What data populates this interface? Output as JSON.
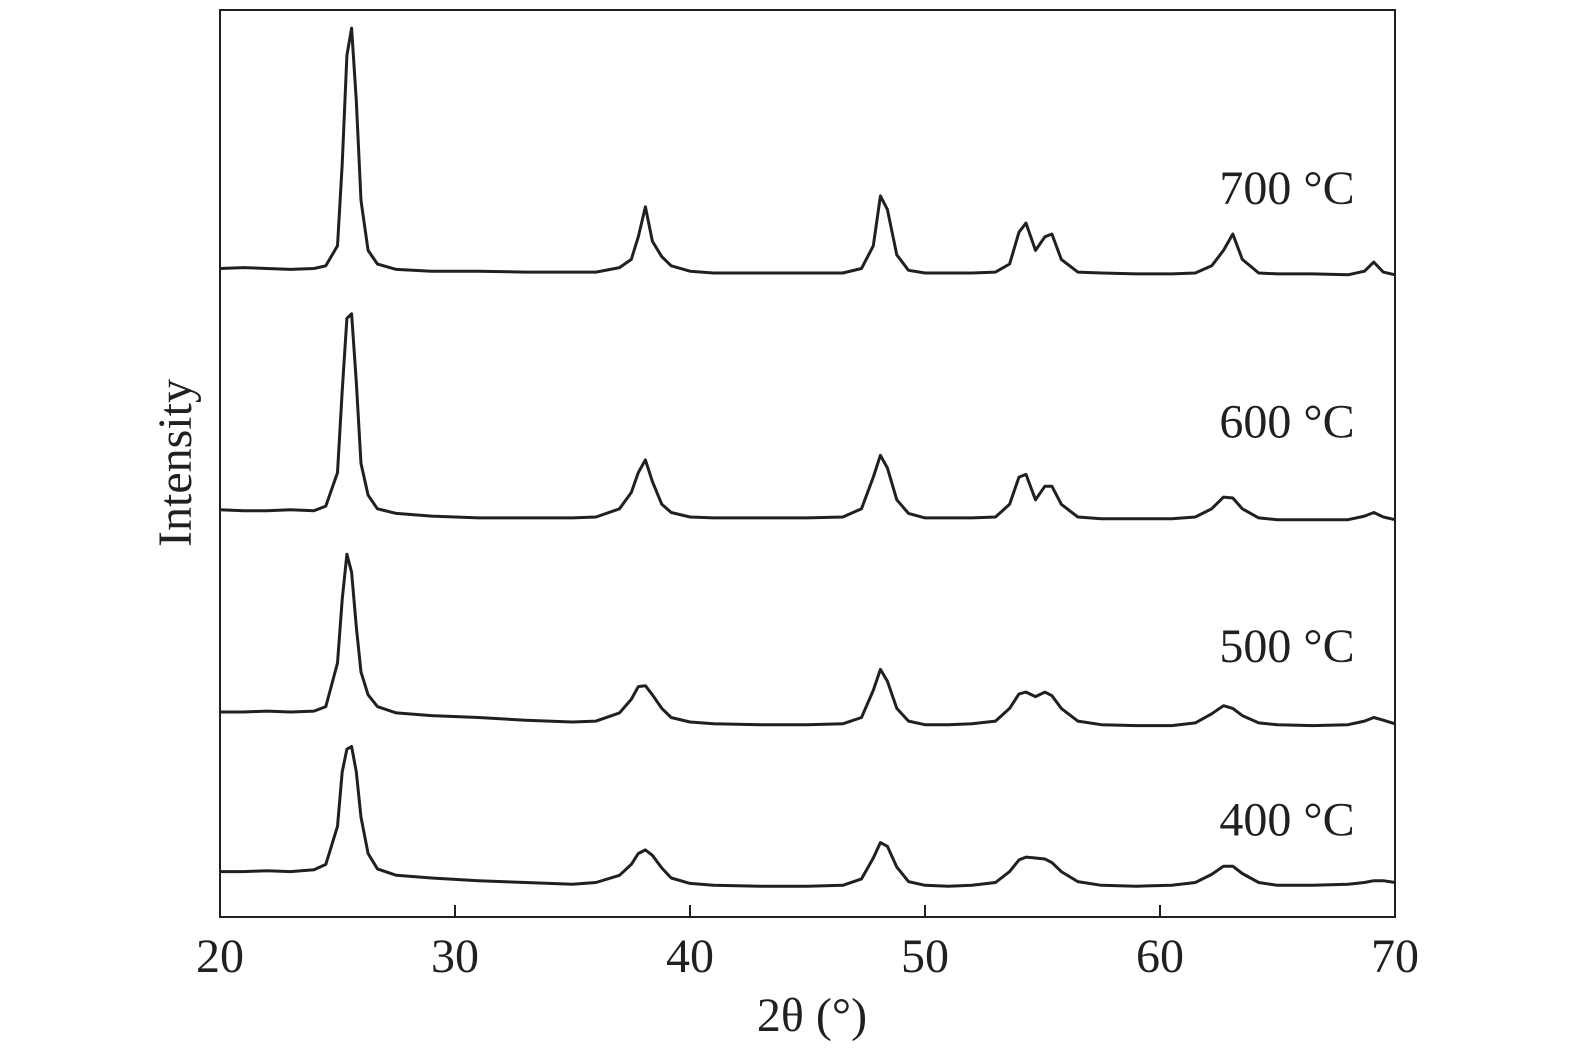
{
  "chart_data": {
    "type": "line",
    "xlabel": "2θ (°)",
    "ylabel": "Intensity",
    "xlim": [
      20,
      70
    ],
    "xticks": [
      20,
      30,
      40,
      50,
      60,
      70
    ],
    "ylim": [
      0,
      100
    ],
    "x": [
      20,
      21,
      22,
      23,
      24,
      24.5,
      25,
      25.2,
      25.4,
      25.6,
      25.8,
      26,
      26.3,
      26.7,
      27.5,
      29,
      31,
      33,
      35,
      36,
      37,
      37.5,
      37.8,
      38.1,
      38.4,
      38.8,
      39.2,
      40,
      41,
      43,
      45,
      46.5,
      47.3,
      47.8,
      48.1,
      48.4,
      48.8,
      49.3,
      50,
      51,
      52,
      53,
      53.6,
      54,
      54.3,
      54.7,
      55.1,
      55.4,
      55.8,
      56.5,
      57.5,
      59,
      60.5,
      61.5,
      62.2,
      62.7,
      63.1,
      63.5,
      64.2,
      65,
      66.5,
      68,
      68.7,
      69.1,
      69.5,
      70
    ],
    "series": [
      {
        "name": "700 °C",
        "color": "#231f20",
        "values": [
          71.5,
          71.6,
          71.5,
          71.4,
          71.5,
          71.8,
          74,
          83,
          95,
          98,
          90,
          79,
          73.5,
          72,
          71.4,
          71.2,
          71.2,
          71.1,
          71.1,
          71.1,
          71.6,
          72.5,
          75,
          78.3,
          74.5,
          72.8,
          71.8,
          71.2,
          71,
          71,
          71,
          71,
          71.5,
          74,
          79.5,
          78,
          73,
          71.3,
          71,
          71,
          71,
          71.1,
          72,
          75.5,
          76.5,
          73.5,
          75,
          75.3,
          72.5,
          71.1,
          71,
          70.9,
          70.9,
          71,
          71.8,
          73.5,
          75.3,
          72.5,
          71,
          70.9,
          70.9,
          70.8,
          71.2,
          72.2,
          71.1,
          70.8
        ]
      },
      {
        "name": "600 °C",
        "color": "#231f20",
        "values": [
          44.9,
          44.8,
          44.8,
          44.9,
          44.8,
          45.3,
          49,
          58,
          66,
          66.5,
          59,
          50,
          46.5,
          45,
          44.5,
          44.2,
          44,
          44,
          44,
          44.1,
          45,
          46.8,
          49,
          50.4,
          48,
          45.5,
          44.6,
          44.1,
          44,
          44,
          44,
          44.1,
          45,
          48.5,
          50.9,
          49.5,
          46,
          44.5,
          44,
          44,
          44,
          44.1,
          45.5,
          48.5,
          48.8,
          46,
          47.5,
          47.5,
          45.5,
          44.1,
          43.9,
          43.9,
          43.9,
          44.1,
          45,
          46.3,
          46.2,
          45,
          44,
          43.8,
          43.8,
          43.8,
          44.2,
          44.6,
          44.1,
          43.8
        ]
      },
      {
        "name": "500 °C",
        "color": "#231f20",
        "values": [
          22.6,
          22.6,
          22.7,
          22.6,
          22.7,
          23.2,
          28,
          35,
          40,
          38,
          32,
          27,
          24.5,
          23.2,
          22.5,
          22.2,
          22,
          21.7,
          21.5,
          21.6,
          22.5,
          24,
          25.4,
          25.5,
          24.5,
          23,
          22,
          21.5,
          21.3,
          21.2,
          21.2,
          21.3,
          22,
          25,
          27.3,
          26,
          23,
          21.6,
          21.2,
          21.2,
          21.3,
          21.6,
          23,
          24.6,
          24.8,
          24.3,
          24.8,
          24.4,
          23,
          21.6,
          21.2,
          21.1,
          21.1,
          21.4,
          22.4,
          23.3,
          23,
          22.2,
          21.4,
          21.2,
          21.1,
          21.2,
          21.6,
          22,
          21.7,
          21.3
        ]
      },
      {
        "name": "400 °C",
        "color": "#231f20",
        "values": [
          5,
          5,
          5.1,
          5,
          5.2,
          5.8,
          10,
          16,
          18.5,
          18.8,
          16,
          11,
          7,
          5.3,
          4.6,
          4.3,
          4,
          3.8,
          3.6,
          3.8,
          4.6,
          5.8,
          7,
          7.4,
          6.8,
          5.4,
          4.3,
          3.7,
          3.5,
          3.4,
          3.4,
          3.5,
          4.2,
          6.5,
          8.2,
          7.8,
          5.5,
          3.9,
          3.5,
          3.4,
          3.5,
          3.8,
          5,
          6.3,
          6.6,
          6.5,
          6.4,
          6,
          5,
          3.9,
          3.5,
          3.4,
          3.5,
          3.8,
          4.7,
          5.6,
          5.6,
          4.8,
          3.8,
          3.5,
          3.5,
          3.6,
          3.8,
          4,
          4,
          3.8
        ]
      }
    ]
  }
}
